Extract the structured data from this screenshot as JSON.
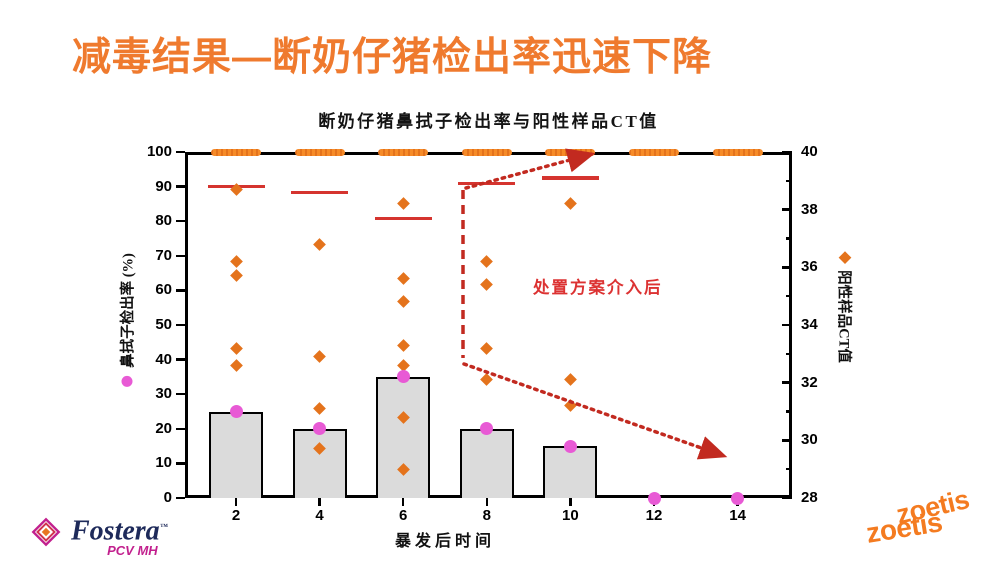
{
  "slide": {
    "title": "减毒结果—断奶仔猪检出率迅速下降"
  },
  "colors": {
    "title_orange": "#EF7A2E",
    "scatter_orange": "#E4731C",
    "cluster_orange": "#F68B28",
    "rate_pink": "#E85AD5",
    "mean_line_red": "#D5342F",
    "arrow_red": "#C22A20",
    "bar_fill": "#DBDBDB",
    "axis_black": "#000000"
  },
  "chart_data": {
    "type": "combo_bar_scatter",
    "title": "断奶仔猪鼻拭子检出率与阳性样品CT值",
    "x_label": "暴发后时间",
    "categories": [
      2,
      4,
      6,
      8,
      10,
      12,
      14
    ],
    "left_axis": {
      "label": "鼻拭子检出率 (%)",
      "min": 0,
      "max": 100,
      "tick_step": 10
    },
    "right_axis": {
      "label": "阳性样品CT值",
      "min": 28,
      "max": 40,
      "tick_step": 2,
      "minor_step": 1
    },
    "bars_detection_rate_pct": [
      25,
      20,
      35,
      20,
      15,
      0,
      0
    ],
    "rate_dots_pct": [
      25,
      20,
      35,
      20,
      15,
      0,
      0
    ],
    "ct_scatter": {
      "2": [
        38.7,
        36.2,
        35.7,
        33.2,
        32.6
      ],
      "4": [
        36.8,
        32.9,
        31.1,
        29.7
      ],
      "6": [
        38.2,
        35.6,
        34.8,
        33.3,
        32.6,
        30.8,
        29.0
      ],
      "8": [
        36.2,
        35.4,
        33.2,
        32.1
      ],
      "10": [
        38.2,
        32.1,
        31.2
      ],
      "12": [],
      "14": []
    },
    "ct40_cluster_weeks": [
      2,
      4,
      6,
      8,
      10,
      12,
      14
    ],
    "ct_mean_lines": {
      "2": 38.8,
      "4": 38.6,
      "6": 37.7,
      "8": 38.9,
      "10": 39.1
    },
    "annotation_text": "处置方案介入后",
    "grid": "off",
    "legend_position": "axis-titles"
  },
  "logos": {
    "fostera_name": "Fostera",
    "fostera_tm": "™",
    "fostera_sub": "PCV MH",
    "zoetis": "zoetis"
  }
}
